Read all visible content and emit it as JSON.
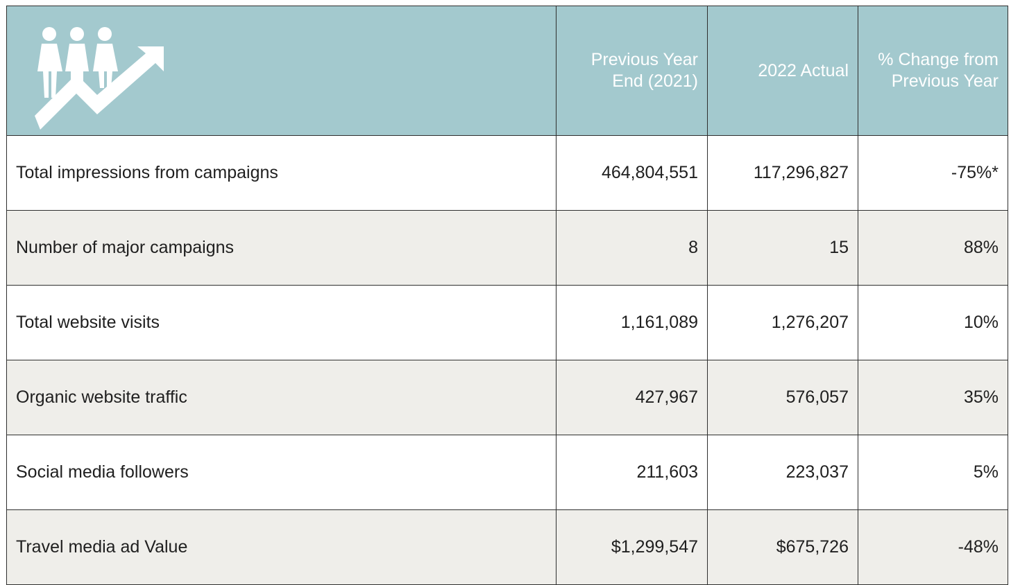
{
  "table": {
    "columns": [
      "Previous Year End (2021)",
      "2022 Actual",
      "% Change from Previous Year"
    ],
    "rows": [
      [
        "Total impressions from campaigns",
        "464,804,551",
        "117,296,827",
        "-75%*"
      ],
      [
        "Number of major campaigns",
        "8",
        "15",
        "88%"
      ],
      [
        "Total website visits",
        "1,161,089",
        "1,276,207",
        "10%"
      ],
      [
        "Organic website traffic",
        "427,967",
        "576,057",
        "35%"
      ],
      [
        "Social media followers",
        "211,603",
        "223,037",
        "5%"
      ],
      [
        "Travel media ad Value",
        "$1,299,547",
        "$675,726",
        "-48%"
      ]
    ]
  }
}
